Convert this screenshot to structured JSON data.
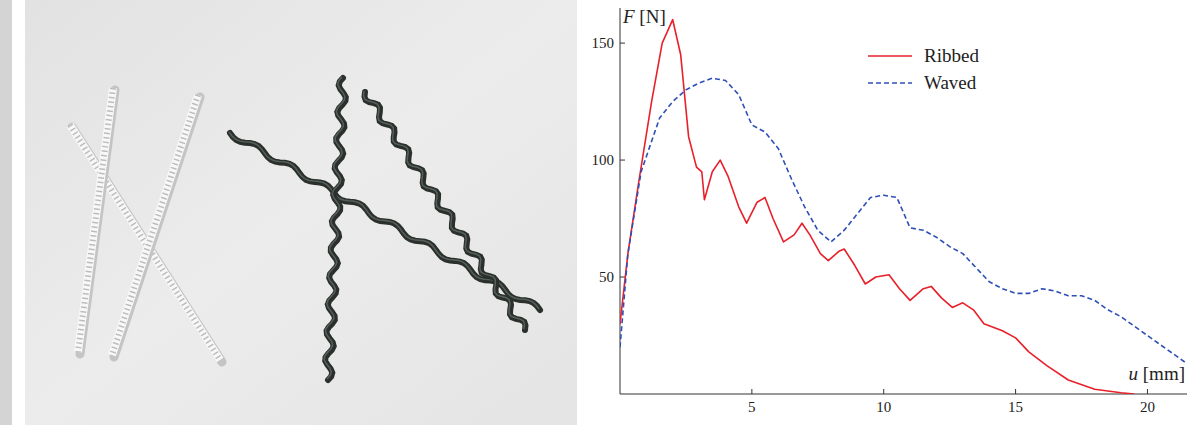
{
  "chart_data": {
    "type": "line",
    "x_label": "u [mm]",
    "y_label": "F [N]",
    "xlim": [
      0,
      21.5
    ],
    "ylim": [
      0,
      165
    ],
    "xticks": [
      5,
      10,
      15,
      20
    ],
    "yticks": [
      50,
      100,
      150
    ],
    "legend": "upper right",
    "grid": false,
    "series": [
      {
        "name": "Ribbed",
        "color": "#e8202a",
        "line_style": "solid",
        "x": [
          0,
          0.3,
          0.7,
          1.2,
          1.6,
          2,
          2.3,
          2.6,
          2.9,
          3.1,
          3.2,
          3.5,
          3.8,
          4.1,
          4.5,
          4.8,
          5.2,
          5.5,
          5.8,
          6.2,
          6.6,
          6.9,
          7.2,
          7.6,
          7.9,
          8.3,
          8.5,
          8.9,
          9.3,
          9.7,
          10.2,
          10.6,
          11,
          11.5,
          11.8,
          12.2,
          12.6,
          13,
          13.4,
          13.8,
          14.5,
          15,
          15.5,
          16.2,
          17,
          18,
          19,
          19.5
        ],
        "values": [
          30,
          60,
          90,
          125,
          150,
          160,
          145,
          110,
          97,
          95,
          83,
          95,
          100,
          93,
          80,
          73,
          82,
          84,
          75,
          65,
          68,
          73,
          68,
          60,
          57,
          61,
          62,
          55,
          47,
          50,
          51,
          45,
          40,
          45,
          46,
          41,
          37,
          39,
          36,
          30,
          27,
          24,
          18,
          12,
          6,
          2,
          0.5,
          0
        ]
      },
      {
        "name": "Waved",
        "color": "#2f4fb8",
        "line_style": "dashed",
        "x": [
          0,
          0.3,
          0.8,
          1.5,
          2,
          2.5,
          3,
          3.5,
          4,
          4.5,
          5,
          5.5,
          6,
          6.5,
          7,
          7.5,
          8,
          8.5,
          9,
          9.5,
          10,
          10.5,
          11,
          11.5,
          12,
          12.5,
          13,
          13.5,
          14,
          14.5,
          15,
          15.5,
          16,
          16.5,
          17,
          17.5,
          18,
          18.5,
          19,
          19.5,
          20,
          20.5,
          21,
          21.5
        ],
        "values": [
          20,
          60,
          95,
          118,
          125,
          130,
          133,
          135,
          134,
          128,
          115,
          112,
          105,
          92,
          80,
          70,
          65,
          70,
          77,
          84,
          85,
          84,
          71,
          70,
          67,
          63,
          60,
          54,
          48,
          45,
          43,
          43,
          45,
          44,
          42,
          42,
          40,
          36,
          33,
          29,
          25,
          21,
          17,
          13
        ]
      }
    ]
  }
}
